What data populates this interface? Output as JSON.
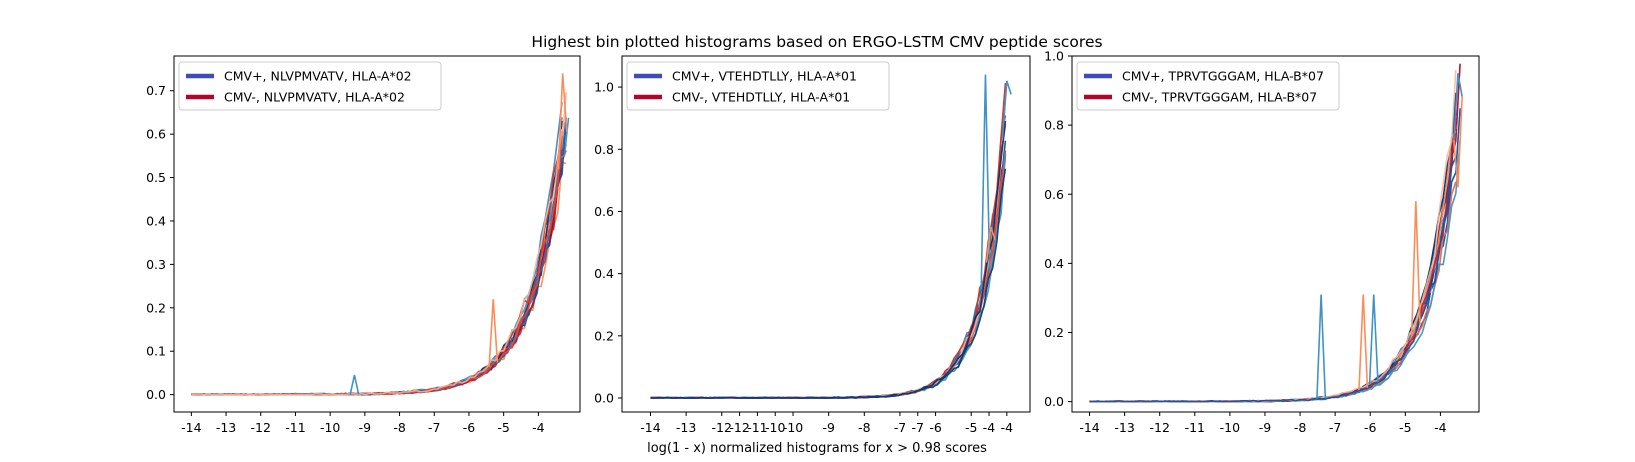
{
  "figure": {
    "suptitle": "Highest bin plotted histograms based on ERGO-LSTM CMV peptide scores",
    "shared_xlabel": "log(1 - x) normalized histograms for x > 0.98 scores"
  },
  "chart_data": [
    {
      "type": "line",
      "title": "",
      "xlabel": "",
      "ylabel": "",
      "xlim": [
        -14.5,
        -2.8
      ],
      "ylim": [
        -0.04,
        0.78
      ],
      "grid": false,
      "legend_position": "top-left",
      "xtick_labels": [
        "-14",
        "-13",
        "-12",
        "-11",
        "-10",
        "-9",
        "-8",
        "-7",
        "-6",
        "-5",
        "-4"
      ],
      "xtick_values": [
        -14,
        -13,
        -12,
        -11,
        -10,
        -9,
        -8,
        -7,
        -6,
        -5,
        -4
      ],
      "yticks": [
        0.0,
        0.1,
        0.2,
        0.3,
        0.4,
        0.5,
        0.6,
        0.7
      ],
      "ytick_labels": [
        "0.0",
        "0.1",
        "0.2",
        "0.3",
        "0.4",
        "0.5",
        "0.6",
        "0.7"
      ],
      "legend": [
        {
          "label": "CMV+, NLVPMVATV, HLA-A*02",
          "color": "#3a4cc0"
        },
        {
          "label": "CMV-, NLVPMVATV, HLA-A*02",
          "color": "#b0062a"
        }
      ],
      "curve": {
        "amp": 0.64,
        "k": 1.05,
        "x_end": -3.2
      },
      "spikes": [
        {
          "x": -9.3,
          "y": 0.045
        },
        {
          "x": -5.3,
          "y": 0.22
        },
        {
          "x": -3.25,
          "y": 0.55
        },
        {
          "x": -3.3,
          "y": 0.74
        }
      ]
    },
    {
      "type": "line",
      "title": "",
      "xlabel": "log(1 - x) normalized histograms for x > 0.98 scores",
      "ylabel": "",
      "xlim": [
        -14.8,
        -3.35
      ],
      "ylim": [
        -0.045,
        1.1
      ],
      "grid": false,
      "legend_position": "top-left",
      "xtick_labels": [
        "-14",
        "-13",
        "-12",
        "-12",
        "-11",
        "-10",
        "-10",
        "-9",
        "-8",
        "-7",
        "-7",
        "-6",
        "-5",
        "-4",
        "-4"
      ],
      "xtick_values": [
        -14,
        -13,
        -12,
        -11.5,
        -11,
        -10.5,
        -10,
        -9,
        -8,
        -7,
        -6.5,
        -6,
        -5,
        -4.5,
        -4
      ],
      "yticks": [
        0.0,
        0.2,
        0.4,
        0.6,
        0.8,
        1.0
      ],
      "ytick_labels": [
        "0.0",
        "0.2",
        "0.4",
        "0.6",
        "0.8",
        "1.0"
      ],
      "legend": [
        {
          "label": "CMV+, VTEHDTLLY, HLA-A*01",
          "color": "#3a4cc0"
        },
        {
          "label": "CMV-, VTEHDTLLY, HLA-A*01",
          "color": "#b0062a"
        }
      ],
      "curve": {
        "amp": 0.93,
        "k": 1.45,
        "x_end": -4.0
      },
      "spikes": [
        {
          "x": -4.6,
          "y": 1.04
        },
        {
          "x": -4.45,
          "y": 0.55
        },
        {
          "x": -4.0,
          "y": 1.02
        }
      ]
    },
    {
      "type": "line",
      "title": "",
      "xlabel": "",
      "ylabel": "",
      "xlim": [
        -14.5,
        -2.9
      ],
      "ylim": [
        -0.03,
        1.0
      ],
      "grid": false,
      "legend_position": "top-left",
      "xtick_labels": [
        "-14",
        "-13",
        "-12",
        "-11",
        "-10",
        "-9",
        "-8",
        "-7",
        "-6",
        "-5",
        "-4"
      ],
      "xtick_values": [
        -14,
        -13,
        -12,
        -11,
        -10,
        -9,
        -8,
        -7,
        -6,
        -5,
        -4
      ],
      "yticks": [
        0.0,
        0.2,
        0.4,
        0.6,
        0.8,
        1.0
      ],
      "ytick_labels": [
        "0.0",
        "0.2",
        "0.4",
        "0.6",
        "0.8",
        "1.0"
      ],
      "legend": [
        {
          "label": "CMV+, TPRVTGGGAM, HLA-B*07",
          "color": "#3a4cc0"
        },
        {
          "label": "CMV-, TPRVTGGGAM, HLA-B*07",
          "color": "#b0062a"
        }
      ],
      "curve": {
        "amp": 0.84,
        "k": 1.15,
        "x_end": -3.5
      },
      "spikes": [
        {
          "x": -7.4,
          "y": 0.31
        },
        {
          "x": -6.2,
          "y": 0.31
        },
        {
          "x": -5.9,
          "y": 0.31
        },
        {
          "x": -4.7,
          "y": 0.58
        },
        {
          "x": -3.5,
          "y": 0.95
        },
        {
          "x": -3.5,
          "y": 0.62
        }
      ]
    }
  ],
  "series_palette": {
    "positive": [
      "#08306b",
      "#08519c",
      "#2171b5",
      "#4292c6",
      "#1f4e99",
      "#0b3d7a",
      "#3d85c6"
    ],
    "negative": [
      "#b40426",
      "#d7301f",
      "#e34a33",
      "#ef6548",
      "#fc8d59",
      "#f4a582",
      "#c0152f",
      "#f7b799"
    ]
  }
}
